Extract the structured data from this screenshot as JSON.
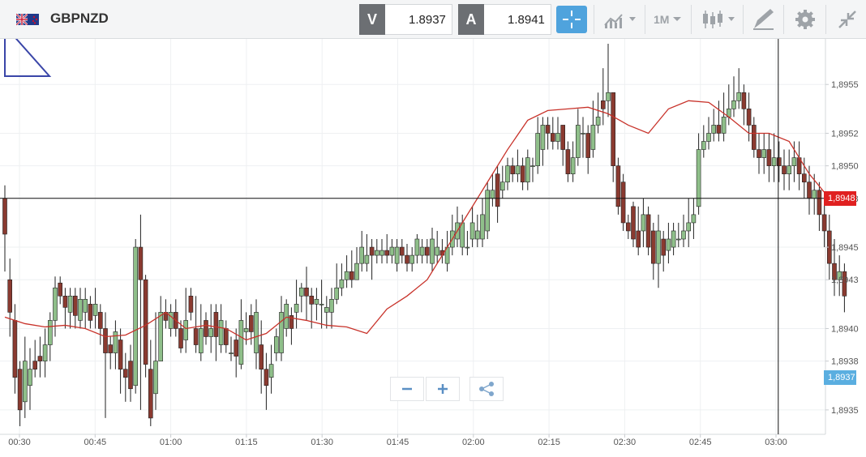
{
  "header": {
    "symbol": "GBPNZD",
    "sell_label": "V",
    "sell_price": "1.8937",
    "buy_label": "A",
    "buy_price": "1.8941",
    "timeframe": "1M"
  },
  "icons": {
    "flag": "uk-nz-flag-icon",
    "crosshair": "crosshair-icon",
    "chart_type": "line-chart-icon",
    "candles": "candlestick-icon",
    "draw": "pencil-icon",
    "settings": "gear-icon",
    "collapse": "collapse-icon"
  },
  "colors": {
    "bull": "#8fbf8a",
    "bear": "#8a3a30",
    "ma": "#c8322a",
    "current_tag": "#5aaee0",
    "crosshair_tag": "#e02020"
  },
  "chart_data": {
    "type": "candlestick",
    "x_ticks": [
      "00:30",
      "00:45",
      "01:00",
      "01:15",
      "01:30",
      "01:45",
      "02:00",
      "02:15",
      "02:30",
      "02:45",
      "03:00"
    ],
    "y_ticks": [
      "1,8935",
      "1,8938",
      "1,8940",
      "1,8943",
      "1,8945",
      "1,8948",
      "1,8950",
      "1,8952",
      "1,8955"
    ],
    "ylim": [
      1.89335,
      1.89578
    ],
    "current_price": "1,8937",
    "crosshair_price": "1,8948",
    "crosshair_time_index": 154,
    "moving_average": [
      1.89407,
      1.89403,
      1.89401,
      1.89402,
      1.894,
      1.89395,
      1.89396,
      1.89402,
      1.8941,
      1.894,
      1.89402,
      1.894,
      1.89393,
      1.89397,
      1.89407,
      1.89405,
      1.89402,
      1.89401,
      1.89397,
      1.89412,
      1.8942,
      1.8943,
      1.8945,
      1.8947,
      1.8949,
      1.8951,
      1.89528,
      1.89534,
      1.89535,
      1.89536,
      1.89532,
      1.89525,
      1.8952,
      1.89535,
      1.8954,
      1.89539,
      1.8953,
      1.8952,
      1.8952,
      1.89515,
      1.89495,
      1.8948
    ],
    "ma_step": 4,
    "grid": true,
    "candles": [
      [
        1.8948,
        1.89458,
        1.89488,
        1.89435
      ],
      [
        1.8943,
        1.8941,
        1.89443,
        1.89395
      ],
      [
        1.89405,
        1.8937,
        1.89415,
        1.8936
      ],
      [
        1.89375,
        1.8935,
        1.8938,
        1.8934
      ],
      [
        1.89355,
        1.8938,
        1.89395,
        1.89345
      ],
      [
        1.89365,
        1.89375,
        1.89388,
        1.8935
      ],
      [
        1.8938,
        1.89375,
        1.89393,
        1.8937
      ],
      [
        1.89383,
        1.8938,
        1.89395,
        1.8937
      ],
      [
        1.8938,
        1.8939,
        1.894,
        1.8937
      ],
      [
        1.8939,
        1.89405,
        1.8941,
        1.8938
      ],
      [
        1.89405,
        1.89425,
        1.89432,
        1.89395
      ],
      [
        1.89428,
        1.8942,
        1.89432,
        1.89415
      ],
      [
        1.8942,
        1.89413,
        1.89425,
        1.894
      ],
      [
        1.8941,
        1.8942,
        1.89425,
        1.894
      ],
      [
        1.8942,
        1.89408,
        1.89425,
        1.894
      ],
      [
        1.89405,
        1.89418,
        1.89425,
        1.894
      ],
      [
        1.8941,
        1.89418,
        1.89425,
        1.894
      ],
      [
        1.89415,
        1.89405,
        1.8942,
        1.894
      ],
      [
        1.89408,
        1.89415,
        1.89425,
        1.894
      ],
      [
        1.8941,
        1.894,
        1.89415,
        1.8939
      ],
      [
        1.894,
        1.89385,
        1.8941,
        1.89345
      ],
      [
        1.8939,
        1.89385,
        1.89395,
        1.89375
      ],
      [
        1.89385,
        1.89398,
        1.89405,
        1.89375
      ],
      [
        1.89393,
        1.89375,
        1.894,
        1.8936
      ],
      [
        1.89375,
        1.8937,
        1.89385,
        1.89355
      ],
      [
        1.8938,
        1.89363,
        1.8939,
        1.89355
      ],
      [
        1.89365,
        1.8945,
        1.89455,
        1.8936
      ],
      [
        1.8945,
        1.8943,
        1.8947,
        1.8935
      ],
      [
        1.8943,
        1.89378,
        1.89433,
        1.8937
      ],
      [
        1.89375,
        1.89345,
        1.89393,
        1.8934
      ],
      [
        1.8936,
        1.8938,
        1.8941,
        1.8935
      ],
      [
        1.8938,
        1.8941,
        1.8942,
        1.8938
      ],
      [
        1.8941,
        1.89405,
        1.89418,
        1.894
      ],
      [
        1.894,
        1.8941,
        1.89415,
        1.89395
      ],
      [
        1.8941,
        1.894,
        1.89418,
        1.89395
      ],
      [
        1.894,
        1.89388,
        1.89405,
        1.89385
      ],
      [
        1.89393,
        1.89405,
        1.89425,
        1.89385
      ],
      [
        1.8942,
        1.8941,
        1.89425,
        1.89405
      ],
      [
        1.894,
        1.8939,
        1.8942,
        1.89385
      ],
      [
        1.89385,
        1.894,
        1.89415,
        1.8938
      ],
      [
        1.89405,
        1.89395,
        1.8941,
        1.8939
      ],
      [
        1.89395,
        1.894,
        1.89415,
        1.89385
      ],
      [
        1.8941,
        1.89395,
        1.89415,
        1.8938
      ],
      [
        1.8939,
        1.89405,
        1.89415,
        1.89385
      ],
      [
        1.894,
        1.8939,
        1.89405,
        1.89385
      ],
      [
        1.89385,
        1.89385,
        1.89395,
        1.8938
      ],
      [
        1.89393,
        1.89383,
        1.894,
        1.8937
      ],
      [
        1.89378,
        1.89405,
        1.89418,
        1.89375
      ],
      [
        1.89398,
        1.894,
        1.8941,
        1.8939
      ],
      [
        1.89408,
        1.89398,
        1.89415,
        1.8939
      ],
      [
        1.89385,
        1.8941,
        1.89418,
        1.89375
      ],
      [
        1.8939,
        1.89375,
        1.89405,
        1.8936
      ],
      [
        1.89375,
        1.89365,
        1.89385,
        1.8935
      ],
      [
        1.8937,
        1.89378,
        1.8939,
        1.8936
      ],
      [
        1.89385,
        1.89395,
        1.894,
        1.8938
      ],
      [
        1.89385,
        1.8941,
        1.8942,
        1.8938
      ],
      [
        1.894,
        1.89415,
        1.89418,
        1.89395
      ],
      [
        1.89408,
        1.894,
        1.89413,
        1.8939
      ],
      [
        1.8941,
        1.89415,
        1.8943,
        1.894
      ],
      [
        1.8942,
        1.89425,
        1.89428,
        1.8941
      ],
      [
        1.89425,
        1.8942,
        1.89438,
        1.89405
      ],
      [
        1.8942,
        1.89415,
        1.89425,
        1.894
      ],
      [
        1.89415,
        1.89418,
        1.89425,
        1.89405
      ],
      [
        1.89415,
        1.89415,
        1.8943,
        1.894
      ],
      [
        1.8941,
        1.89413,
        1.8942,
        1.894
      ],
      [
        1.8941,
        1.89418,
        1.89425,
        1.894
      ],
      [
        1.89418,
        1.89425,
        1.8944,
        1.89415
      ],
      [
        1.89425,
        1.8943,
        1.8944,
        1.8942
      ],
      [
        1.8943,
        1.89435,
        1.89445,
        1.89425
      ],
      [
        1.89435,
        1.8943,
        1.89448,
        1.89425
      ],
      [
        1.8943,
        1.8944,
        1.8945,
        1.8943
      ],
      [
        1.8944,
        1.8945,
        1.8946,
        1.89435
      ],
      [
        1.8944,
        1.89445,
        1.89458,
        1.89435
      ],
      [
        1.8945,
        1.89445,
        1.89455,
        1.8943
      ],
      [
        1.89445,
        1.89448,
        1.89455,
        1.8944
      ],
      [
        1.89445,
        1.89448,
        1.89455,
        1.8944
      ],
      [
        1.89448,
        1.89445,
        1.89458,
        1.8944
      ],
      [
        1.89445,
        1.8945,
        1.89455,
        1.8944
      ],
      [
        1.8944,
        1.8945,
        1.89455,
        1.89435
      ],
      [
        1.8945,
        1.89445,
        1.89455,
        1.8944
      ],
      [
        1.89445,
        1.8944,
        1.89452,
        1.89435
      ],
      [
        1.8944,
        1.89445,
        1.8945,
        1.89435
      ],
      [
        1.89445,
        1.89455,
        1.89458,
        1.8944
      ],
      [
        1.89445,
        1.8945,
        1.89455,
        1.8944
      ],
      [
        1.8945,
        1.89445,
        1.89455,
        1.8944
      ],
      [
        1.8944,
        1.89455,
        1.89462,
        1.89435
      ],
      [
        1.89445,
        1.8945,
        1.8946,
        1.8944
      ],
      [
        1.89448,
        1.89445,
        1.89455,
        1.8944
      ],
      [
        1.8944,
        1.8945,
        1.8946,
        1.89435
      ],
      [
        1.8945,
        1.8946,
        1.8947,
        1.89445
      ],
      [
        1.89455,
        1.89465,
        1.89475,
        1.8945
      ],
      [
        1.8945,
        1.89465,
        1.8947,
        1.89445
      ],
      [
        1.8945,
        1.8945,
        1.8946,
        1.89445
      ],
      [
        1.89455,
        1.89465,
        1.89475,
        1.8945
      ],
      [
        1.89455,
        1.8946,
        1.8947,
        1.8945
      ],
      [
        1.89455,
        1.8947,
        1.8948,
        1.8945
      ],
      [
        1.8946,
        1.89485,
        1.8949,
        1.89455
      ],
      [
        1.8948,
        1.89485,
        1.89495,
        1.89475
      ],
      [
        1.89495,
        1.89475,
        1.895,
        1.89465
      ],
      [
        1.89485,
        1.8949,
        1.895,
        1.8948
      ],
      [
        1.8949,
        1.895,
        1.89505,
        1.89485
      ],
      [
        1.895,
        1.89495,
        1.89505,
        1.8949
      ],
      [
        1.89495,
        1.895,
        1.8951,
        1.8949
      ],
      [
        1.895,
        1.8949,
        1.89505,
        1.89485
      ],
      [
        1.8949,
        1.89505,
        1.8951,
        1.89485
      ],
      [
        1.895,
        1.895,
        1.89505,
        1.8949
      ],
      [
        1.895,
        1.8952,
        1.8953,
        1.89495
      ],
      [
        1.8951,
        1.89525,
        1.8953,
        1.895
      ],
      [
        1.89525,
        1.8952,
        1.8953,
        1.8951
      ],
      [
        1.8952,
        1.89515,
        1.8953,
        1.8951
      ],
      [
        1.89515,
        1.8952,
        1.8953,
        1.8951
      ],
      [
        1.89525,
        1.8951,
        1.89525,
        1.895
      ],
      [
        1.8951,
        1.89495,
        1.89515,
        1.8949
      ],
      [
        1.89495,
        1.89505,
        1.89515,
        1.8949
      ],
      [
        1.89505,
        1.89525,
        1.89535,
        1.895
      ],
      [
        1.8952,
        1.8952,
        1.8953,
        1.89505
      ],
      [
        1.8952,
        1.89505,
        1.89525,
        1.89495
      ],
      [
        1.8951,
        1.89525,
        1.8954,
        1.89505
      ],
      [
        1.89525,
        1.8953,
        1.89545,
        1.8952
      ],
      [
        1.8954,
        1.89535,
        1.8956,
        1.89525
      ],
      [
        1.8954,
        1.89545,
        1.89575,
        1.8953
      ],
      [
        1.89545,
        1.895,
        1.89545,
        1.8949
      ],
      [
        1.895,
        1.89475,
        1.89505,
        1.8947
      ],
      [
        1.8949,
        1.89465,
        1.89495,
        1.8946
      ],
      [
        1.89465,
        1.8946,
        1.8947,
        1.89455
      ],
      [
        1.89475,
        1.89455,
        1.89478,
        1.8945
      ],
      [
        1.8946,
        1.8945,
        1.89475,
        1.89445
      ],
      [
        1.8946,
        1.8947,
        1.8948,
        1.8945
      ],
      [
        1.8947,
        1.8945,
        1.89475,
        1.89445
      ],
      [
        1.8946,
        1.8944,
        1.89465,
        1.8943
      ],
      [
        1.8944,
        1.8946,
        1.8947,
        1.89425
      ],
      [
        1.89455,
        1.89445,
        1.8946,
        1.89435
      ],
      [
        1.89448,
        1.89455,
        1.89465,
        1.8944
      ],
      [
        1.8945,
        1.8946,
        1.89465,
        1.89445
      ],
      [
        1.89455,
        1.89455,
        1.89465,
        1.8945
      ],
      [
        1.89455,
        1.8946,
        1.8947,
        1.8945
      ],
      [
        1.8946,
        1.89465,
        1.8948,
        1.8945
      ],
      [
        1.89465,
        1.8947,
        1.8948,
        1.89455
      ],
      [
        1.89475,
        1.8951,
        1.8952,
        1.8947
      ],
      [
        1.8951,
        1.89515,
        1.89525,
        1.89505
      ],
      [
        1.89515,
        1.8952,
        1.8953,
        1.8951
      ],
      [
        1.8952,
        1.89525,
        1.89535,
        1.89515
      ],
      [
        1.89525,
        1.8952,
        1.8954,
        1.89515
      ],
      [
        1.8952,
        1.8953,
        1.89545,
        1.89515
      ],
      [
        1.8953,
        1.89535,
        1.8955,
        1.89525
      ],
      [
        1.89535,
        1.8954,
        1.89555,
        1.8953
      ],
      [
        1.8954,
        1.89545,
        1.8956,
        1.89535
      ],
      [
        1.89545,
        1.89535,
        1.8955,
        1.89525
      ],
      [
        1.89535,
        1.89525,
        1.89545,
        1.89515
      ],
      [
        1.89525,
        1.8951,
        1.8953,
        1.89505
      ],
      [
        1.8951,
        1.89505,
        1.8952,
        1.89495
      ],
      [
        1.89505,
        1.8951,
        1.8952,
        1.89495
      ],
      [
        1.8951,
        1.895,
        1.8952,
        1.8949
      ],
      [
        1.895,
        1.89505,
        1.8952,
        1.8949
      ],
      [
        1.89505,
        1.895,
        1.89515,
        1.8949
      ],
      [
        1.895,
        1.89495,
        1.8951,
        1.89485
      ],
      [
        1.89495,
        1.895,
        1.8951,
        1.89485
      ],
      [
        1.895,
        1.89505,
        1.89515,
        1.8949
      ],
      [
        1.89505,
        1.89495,
        1.89515,
        1.89485
      ],
      [
        1.89495,
        1.8949,
        1.89505,
        1.8948
      ],
      [
        1.8949,
        1.8948,
        1.895,
        1.8947
      ],
      [
        1.8948,
        1.89485,
        1.89495,
        1.8947
      ],
      [
        1.89485,
        1.8947,
        1.8949,
        1.8946
      ],
      [
        1.8947,
        1.8946,
        1.8948,
        1.8945
      ],
      [
        1.8946,
        1.8944,
        1.8947,
        1.8943
      ],
      [
        1.8944,
        1.8943,
        1.89455,
        1.8942
      ],
      [
        1.8943,
        1.89435,
        1.89445,
        1.8942
      ],
      [
        1.89435,
        1.8942,
        1.8944,
        1.8941
      ]
    ]
  }
}
